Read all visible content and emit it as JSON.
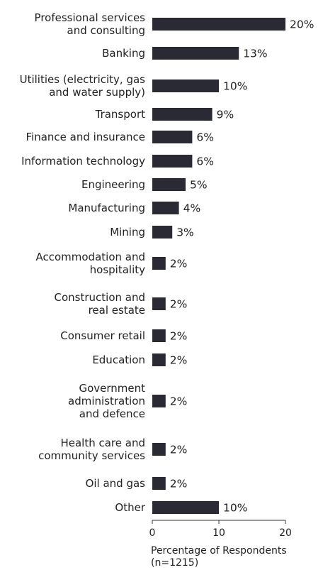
{
  "chart_data": {
    "type": "bar",
    "orientation": "horizontal",
    "categories": [
      "Professional services and consulting",
      "Banking",
      "Utilities (electricity, gas and water supply)",
      "Transport",
      "Finance and insurance",
      "Information technology",
      "Engineering",
      "Manufacturing",
      "Mining",
      "Accommodation and hospitality",
      "Construction and real estate",
      "Consumer retail",
      "Education",
      "Government administration and defence",
      "Health care and community services",
      "Oil and gas",
      "Other"
    ],
    "category_lines": [
      [
        "Professional services",
        "and consulting"
      ],
      [
        "Banking"
      ],
      [
        "Utilities (electricity, gas",
        "and water supply)"
      ],
      [
        "Transport"
      ],
      [
        "Finance and insurance"
      ],
      [
        "Information technology"
      ],
      [
        "Engineering"
      ],
      [
        "Manufacturing"
      ],
      [
        "Mining"
      ],
      [
        "Accommodation and",
        "hospitality"
      ],
      [
        "Construction and",
        "real estate"
      ],
      [
        "Consumer retail"
      ],
      [
        "Education"
      ],
      [
        "Government",
        "administration",
        "and defence"
      ],
      [
        "Health care and",
        "community services"
      ],
      [
        "Oil and gas"
      ],
      [
        "Other"
      ]
    ],
    "values": [
      20,
      13,
      10,
      9,
      6,
      6,
      5,
      4,
      3,
      2,
      2,
      2,
      2,
      2,
      2,
      2,
      10
    ],
    "value_labels": [
      "20%",
      "13%",
      "10%",
      "9%",
      "6%",
      "6%",
      "5%",
      "4%",
      "3%",
      "2%",
      "2%",
      "2%",
      "2%",
      "2%",
      "2%",
      "2%",
      "10%"
    ],
    "xlim": [
      0,
      20
    ],
    "xticks": [
      0,
      10,
      20
    ],
    "xtick_labels": [
      "0",
      "10",
      "20"
    ],
    "xlabel": "Percentage of Respondents",
    "xlabel_note": "(n=1215)",
    "bar_color": "#2a2a35",
    "grid": false,
    "legend": "none"
  }
}
